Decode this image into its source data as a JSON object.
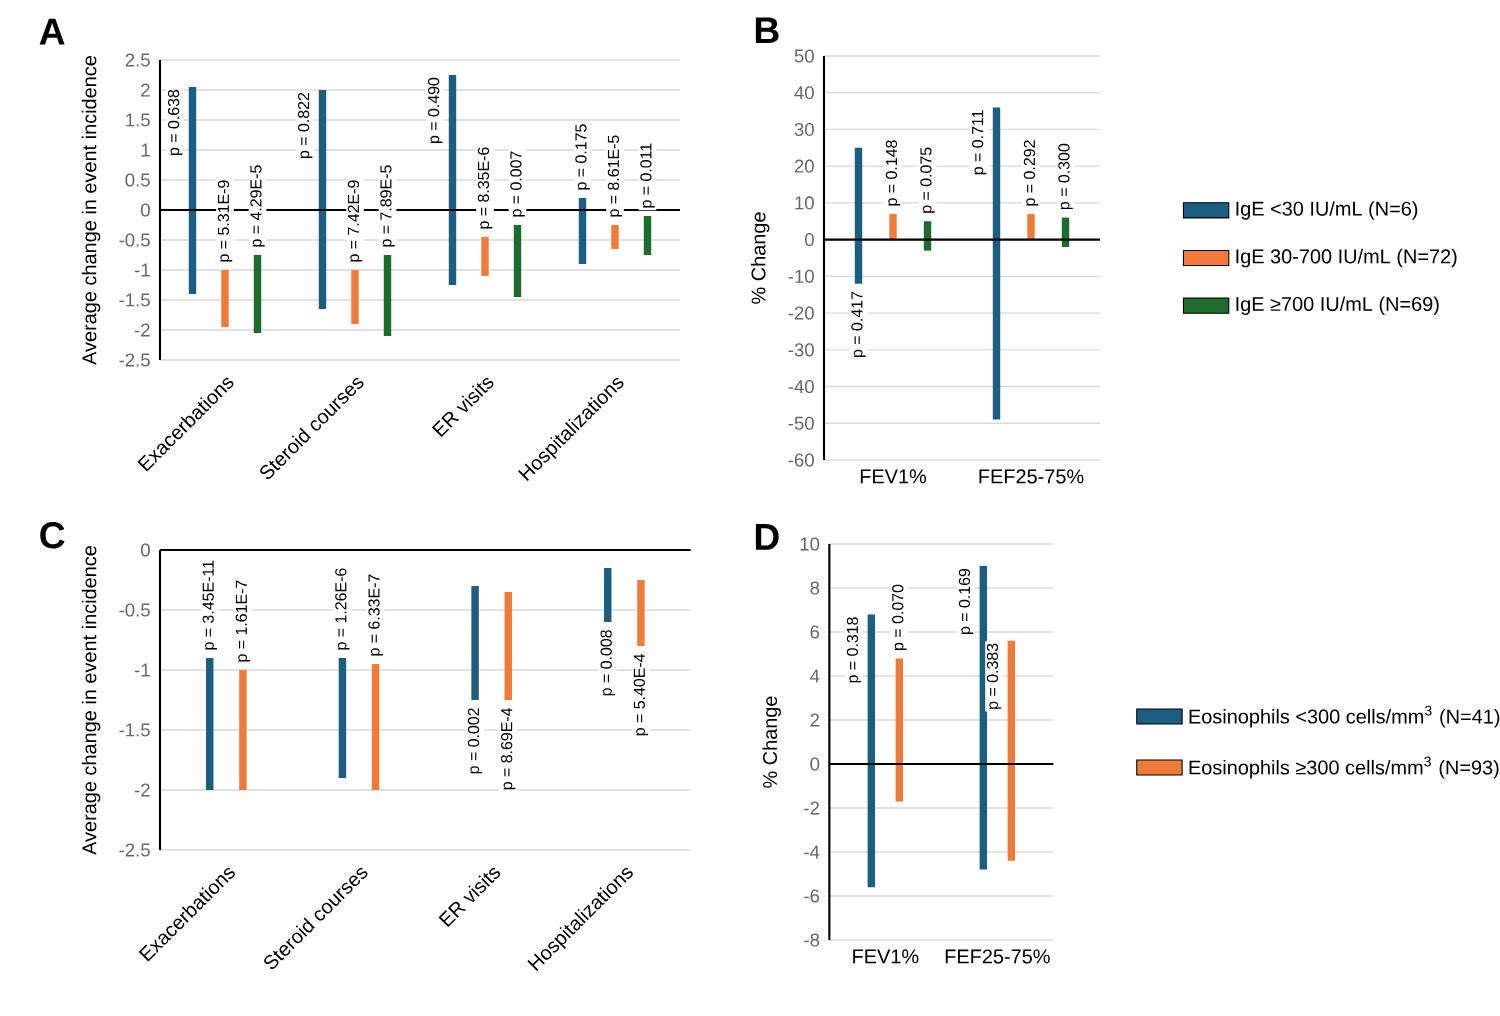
{
  "chart_data": [
    {
      "type": "bar",
      "title": "A",
      "ylabel": "Average change in event incidence",
      "categories": [
        "Exacerbations",
        "Steroid courses",
        "ER visits",
        "Hospitalizations"
      ],
      "series": [
        {
          "color": "#1b5e82",
          "base": [
            -1.4,
            -1.65,
            -1.25,
            -0.9
          ],
          "values": [
            3.45,
            3.65,
            3.5,
            1.1
          ]
        },
        {
          "color": "#f07a3a",
          "base": [
            -1.95,
            -1.9,
            -1.1,
            -0.65
          ],
          "values": [
            0.95,
            0.9,
            0.65,
            0.4
          ]
        },
        {
          "color": "#1e6b2e",
          "base": [
            -2.05,
            -2.1,
            -1.45,
            -0.75
          ],
          "values": [
            1.3,
            1.35,
            1.2,
            0.65
          ]
        }
      ],
      "annotations": [
        "p = 0.638",
        "p = 0.822",
        "p = 0.490",
        "p = 0.175",
        "p = 5.31E-9",
        "p = 7.42E-9",
        "p = 8.35E-6",
        "p = 8.61E-5",
        "p = 4.29E-5",
        "p = 7.89E-5",
        "p = 0.007",
        "p = 0.011"
      ],
      "ylim": [
        -2.5,
        2.5
      ],
      "yticks": [
        -2.5,
        -2,
        -1.5,
        -1,
        -0.5,
        0,
        0.5,
        1,
        1.5,
        2,
        2.5
      ],
      "grid": "y",
      "ref_lines": [
        {
          "axis": "y",
          "value": 0,
          "color": "#000000"
        }
      ]
    },
    {
      "type": "bar",
      "title": "B",
      "ylabel": "% Change",
      "categories": [
        "FEV1%",
        "FEF25-75%"
      ],
      "series": [
        {
          "name": "IgE <30 IU/mL (N=6)",
          "color": "#1b5e82",
          "base": [
            -12,
            -49
          ],
          "values": [
            37,
            85
          ]
        },
        {
          "name": "IgE 30-700 IU/mL (N=72)",
          "color": "#f07a3a",
          "base": [
            0,
            0
          ],
          "values": [
            7,
            7
          ]
        },
        {
          "name": "IgE ≥700 IU/mL (N=69)",
          "color": "#1e6b2e",
          "base": [
            -3,
            -2
          ],
          "values": [
            8,
            8
          ]
        }
      ],
      "annotations": [
        "p = 0.417",
        "p = 0.711",
        "p = 0.148",
        "p = 0.292",
        "p = 0.075",
        "p = 0.300"
      ],
      "ylim": [
        -60,
        50
      ],
      "yticks": [
        -60,
        -50,
        -40,
        -30,
        -20,
        -10,
        0,
        10,
        20,
        30,
        40,
        50
      ],
      "grid": "y",
      "legend": "right",
      "ref_lines": [
        {
          "axis": "y",
          "value": 0,
          "color": "#000000"
        }
      ]
    },
    {
      "type": "bar",
      "title": "C",
      "ylabel": "Average change in event incidence",
      "categories": [
        "Exacerbations",
        "Steroid courses",
        "ER visits",
        "Hospitalizations"
      ],
      "series": [
        {
          "color": "#1b5e82",
          "base": [
            -2,
            -1.9,
            -1.25,
            -0.6
          ],
          "values": [
            1.1,
            1.0,
            0.95,
            0.45
          ]
        },
        {
          "color": "#f07a3a",
          "base": [
            -2,
            -2,
            -1.25,
            -0.8
          ],
          "values": [
            1.0,
            1.05,
            0.9,
            0.55
          ]
        }
      ],
      "annotations": [
        "p = 3.45E-11",
        "p = 1.26E-6",
        "p = 0.002",
        "p = 0.008",
        "p = 1.61E-7",
        "p = 6.33E-7",
        "p = 8.69E-4",
        "p = 5.40E-4"
      ],
      "ylim": [
        -2.5,
        0
      ],
      "yticks": [
        -2.5,
        -2,
        -1.5,
        -1,
        -0.5,
        0
      ],
      "grid": "y",
      "ref_lines": [
        {
          "axis": "y",
          "value": 0,
          "color": "#000000"
        }
      ]
    },
    {
      "type": "bar",
      "title": "D",
      "ylabel": "% Change",
      "categories": [
        "FEV1%",
        "FEF25-75%"
      ],
      "series": [
        {
          "name": "Eosinophils <300 cells/mm$^{3}$ (N=41)",
          "color": "#1b5e82",
          "base": [
            -5.6,
            -4.8
          ],
          "values": [
            12.4,
            13.8
          ]
        },
        {
          "name": "Eosinophils ≥300 cells/mm$^{3}$ (N=93)",
          "color": "#f07a3a",
          "base": [
            -1.7,
            -4.4
          ],
          "values": [
            6.5,
            10.0
          ]
        }
      ],
      "annotations": [
        "p = 0.318",
        "p = 0.169",
        "p = 0.070",
        "p = 0.383"
      ],
      "ylim": [
        -8,
        10
      ],
      "yticks": [
        -8,
        -6,
        -4,
        -2,
        0,
        2,
        4,
        6,
        8,
        10
      ],
      "grid": "y",
      "legend": "right",
      "ref_lines": [
        {
          "axis": "y",
          "value": 0,
          "color": "#000000"
        }
      ]
    }
  ]
}
